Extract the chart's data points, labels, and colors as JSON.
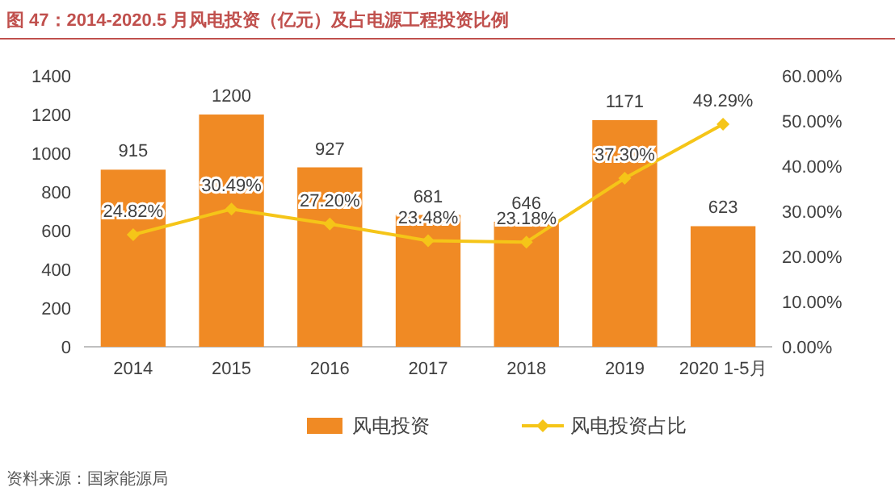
{
  "chart_data": {
    "type": "bar",
    "title": "图 47：2014-2020.5 月风电投资（亿元）及占电源工程投资比例",
    "categories": [
      "2014",
      "2015",
      "2016",
      "2017",
      "2018",
      "2019",
      "2020 1-5月"
    ],
    "series": [
      {
        "name": "风电投资",
        "color": "#f08a24",
        "values": [
          915,
          1200,
          927,
          681,
          646,
          1171,
          623
        ],
        "value_labels": [
          "915",
          "1200",
          "927",
          "681",
          "646",
          "1171",
          "623"
        ]
      },
      {
        "name": "风电投资占比",
        "type": "line",
        "axis": "y2",
        "color": "#f5c518",
        "marker": "diamond",
        "values": [
          24.82,
          30.49,
          27.2,
          23.48,
          23.18,
          37.3,
          49.29
        ],
        "value_labels": [
          "24.82%",
          "30.49%",
          "27.20%",
          "23.48%",
          "23.18%",
          "37.30%",
          "49.29%"
        ]
      }
    ],
    "ylim": [
      0,
      1400
    ],
    "yticks": [
      0,
      200,
      400,
      600,
      800,
      1000,
      1200,
      1400
    ],
    "y2lim": [
      0,
      60
    ],
    "y2ticks": [
      {
        "value": 0,
        "label": "0.00%"
      },
      {
        "value": 10,
        "label": "10.00%"
      },
      {
        "value": 20,
        "label": "20.00%"
      },
      {
        "value": 30,
        "label": "30.00%"
      },
      {
        "value": 40,
        "label": "40.00%"
      },
      {
        "value": 50,
        "label": "50.00%"
      },
      {
        "value": 60,
        "label": "60.00%"
      }
    ],
    "legend": "bottom",
    "annotations": [
      "资料来源：国家能源局"
    ]
  }
}
